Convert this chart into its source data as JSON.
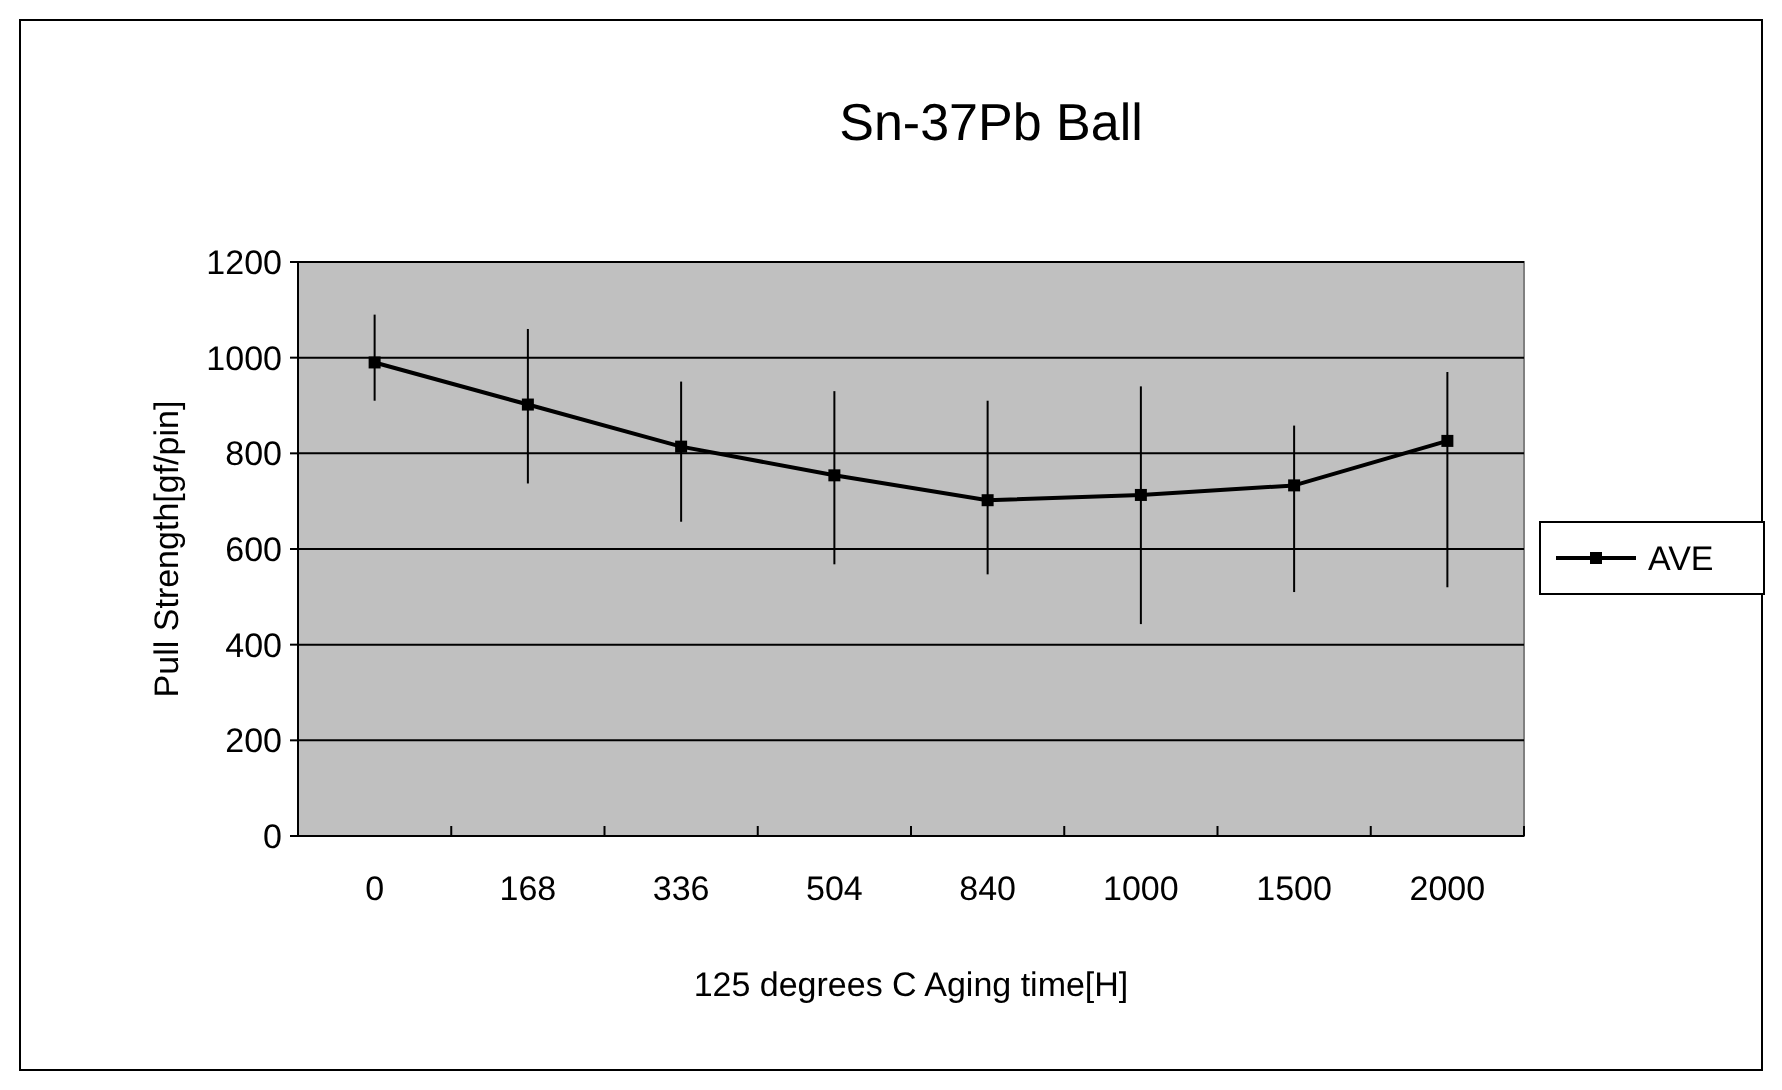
{
  "chart_data": {
    "type": "line",
    "title": "Sn-37Pb Ball",
    "xlabel": "125 degrees C Aging time[H]",
    "ylabel": "Pull Strength[gf/pin]",
    "categories": [
      "0",
      "168",
      "336",
      "504",
      "840",
      "1000",
      "1500",
      "2000"
    ],
    "series": [
      {
        "name": "AVE",
        "color": "#000000",
        "values": [
          990,
          902,
          814,
          754,
          702,
          713,
          733,
          826
        ],
        "errors": [
          [
            910,
            1090
          ],
          [
            737,
            1060
          ],
          [
            657,
            950
          ],
          [
            568,
            930
          ],
          [
            547,
            910
          ],
          [
            443,
            940
          ],
          [
            510,
            858
          ],
          [
            520,
            970
          ]
        ]
      }
    ],
    "ylim": [
      0,
      1200
    ],
    "yticks": [
      0,
      200,
      400,
      600,
      800,
      1000,
      1200
    ],
    "grid": "y",
    "legend": "right",
    "marker": "square",
    "line_style": "solid"
  }
}
